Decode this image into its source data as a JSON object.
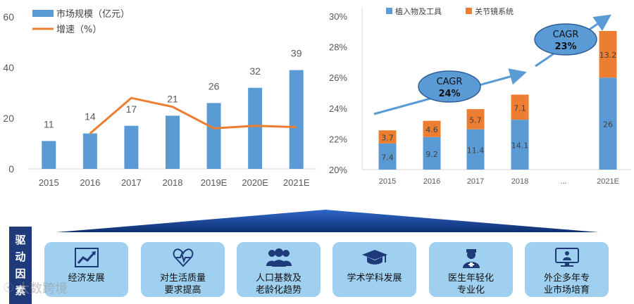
{
  "chart_data": [
    {
      "type": "bar",
      "title": "",
      "categories": [
        "2015",
        "2016",
        "2017",
        "2018",
        "2019E",
        "2020E",
        "2021E"
      ],
      "series": [
        {
          "name": "市场规模（亿元）",
          "type": "bar",
          "values": [
            11,
            14,
            17,
            21,
            26,
            32,
            39
          ]
        },
        {
          "name": "增速（%）",
          "type": "line",
          "values": [
            null,
            null,
            null,
            null,
            null,
            null,
            null
          ]
        }
      ],
      "line_points_2016_to_2021E": [
        14,
        28,
        24.5,
        16,
        17,
        16.5
      ],
      "data_labels": [
        "11",
        "14",
        "17",
        "21",
        "26",
        "32",
        "39"
      ],
      "yticks": [
        "0",
        "20",
        "40",
        "60"
      ],
      "ylim": [
        0,
        60
      ],
      "legend": {
        "bar": "市场规模（亿元）",
        "line": "增速（%）"
      },
      "colors": {
        "bar": "#5b9bd5",
        "line": "#ed7d31"
      }
    },
    {
      "type": "stacked_bar",
      "categories": [
        "2015",
        "2016",
        "2017",
        "2018",
        "...",
        "2021E"
      ],
      "series": [
        {
          "name": "植入物及工具",
          "values": [
            7.4,
            9.2,
            11.4,
            14.1,
            null,
            26
          ]
        },
        {
          "name": "关节镜系统",
          "values": [
            3.7,
            4.6,
            5.7,
            7.1,
            null,
            13.2
          ]
        }
      ],
      "yticks": [
        "20%",
        "22%",
        "24%",
        "26%",
        "28%",
        "30%"
      ],
      "annotations": [
        {
          "text": "CAGR\n24%",
          "label1": "CAGR",
          "label2": "24%"
        },
        {
          "text": "CAGR\n23%",
          "label1": "CAGR",
          "label2": "23%"
        }
      ],
      "colors": {
        "implant": "#5b9bd5",
        "arthro": "#ed7d31",
        "arrow": "#5b9bd5",
        "bubble": "#5b9bd5",
        "bubble_border": "#2e5f9a"
      }
    }
  ],
  "drivers": {
    "label": "驱动因素",
    "items": [
      {
        "icon": "trend-chart-icon",
        "text": "经济发展"
      },
      {
        "icon": "heartbeat-icon",
        "text": "对生活质量\n要求提高"
      },
      {
        "icon": "people-group-icon",
        "text": "人口基数及\n老龄化趋势"
      },
      {
        "icon": "graduation-cap-icon",
        "text": "学术学科发展"
      },
      {
        "icon": "doctor-icon",
        "text": "医生年轻化\n专业化"
      },
      {
        "icon": "monitor-doctor-icon",
        "text": "外企多年专\n业市场培育"
      }
    ]
  },
  "watermark": "大数跨境"
}
